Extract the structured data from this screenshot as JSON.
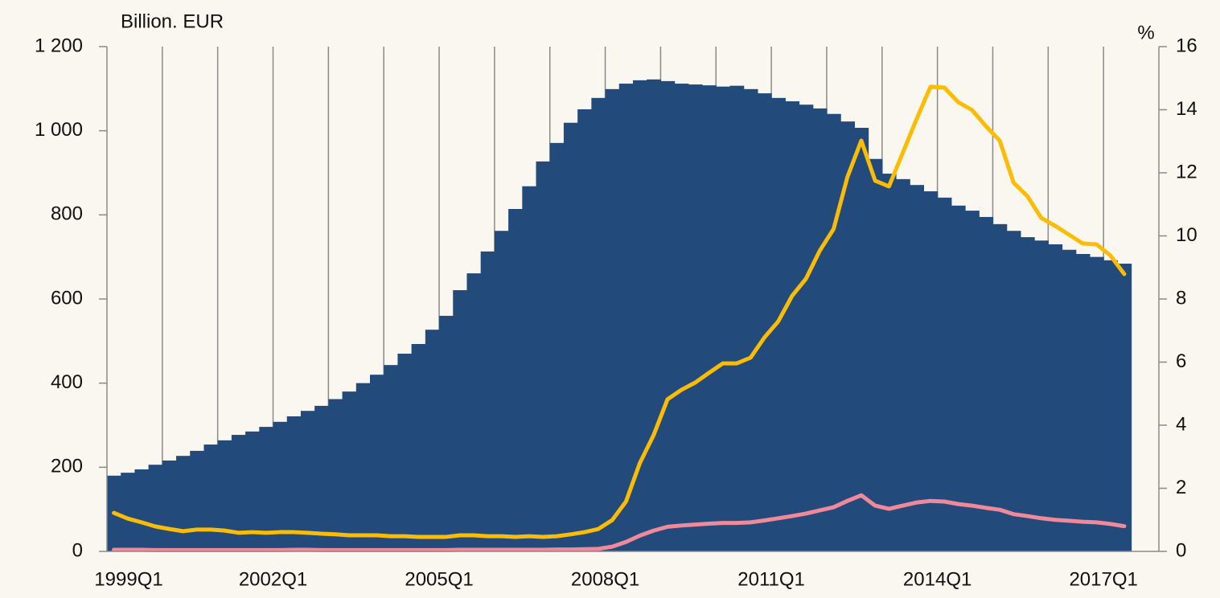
{
  "chart_data": {
    "type": "combo",
    "ylabel": "Billion. EUR",
    "y2label": "%",
    "categories": [
      "1999Q1",
      null,
      null,
      null,
      null,
      null,
      null,
      null,
      null,
      null,
      null,
      null,
      "2002Q1",
      null,
      null,
      null,
      null,
      null,
      null,
      null,
      null,
      null,
      null,
      null,
      "2005Q1",
      null,
      null,
      null,
      null,
      null,
      null,
      null,
      null,
      null,
      null,
      null,
      "2008Q1",
      null,
      null,
      null,
      null,
      null,
      null,
      null,
      null,
      null,
      null,
      null,
      "2011Q1",
      null,
      null,
      null,
      null,
      null,
      null,
      null,
      null,
      null,
      null,
      null,
      "2014Q1",
      null,
      null,
      null,
      null,
      null,
      null,
      null,
      null,
      null,
      null,
      null,
      "2017Q1",
      null,
      null,
      null
    ],
    "ylim": [
      0,
      1200
    ],
    "yticks": [
      0,
      200,
      400,
      600,
      800,
      {
        "value": 1000,
        "label": "1 000"
      },
      {
        "value": 1200,
        "label": "1 200"
      }
    ],
    "y2lim": [
      0,
      16
    ],
    "y2ticks": [
      0,
      2,
      4,
      6,
      8,
      10,
      12,
      14,
      16
    ],
    "grid": "x",
    "series": [
      {
        "type": "bar",
        "color": "#224a7b",
        "values": [
          180,
          187,
          195,
          206,
          216,
          227,
          239,
          254,
          264,
          277,
          285,
          296,
          308,
          321,
          334,
          346,
          362,
          380,
          400,
          420,
          443,
          470,
          493,
          527,
          560,
          621,
          661,
          713,
          762,
          814,
          868,
          927,
          971,
          1019,
          1051,
          1078,
          1099,
          1112,
          1120,
          1122,
          1118,
          1112,
          1110,
          1108,
          1105,
          1107,
          1099,
          1089,
          1078,
          1070,
          1062,
          1053,
          1040,
          1022,
          1007,
          933,
          898,
          885,
          871,
          856,
          841,
          822,
          810,
          795,
          778,
          762,
          747,
          739,
          730,
          717,
          707,
          700,
          692,
          684,
          null,
          null
        ]
      },
      {
        "type": "line",
        "axis": "y2",
        "color": "#fbbc05",
        "values": [
          1.22,
          1.04,
          0.92,
          0.79,
          0.71,
          0.64,
          0.69,
          0.69,
          0.66,
          0.59,
          0.61,
          0.59,
          0.61,
          0.61,
          0.59,
          0.56,
          0.54,
          0.51,
          0.51,
          0.51,
          0.48,
          0.48,
          0.46,
          0.46,
          0.46,
          0.51,
          0.51,
          0.48,
          0.48,
          0.46,
          0.48,
          0.46,
          0.48,
          0.54,
          0.61,
          0.71,
          0.99,
          1.58,
          2.8,
          3.69,
          4.82,
          5.12,
          5.35,
          5.66,
          5.96,
          5.96,
          6.14,
          6.78,
          7.29,
          8.1,
          8.64,
          9.53,
          10.22,
          11.87,
          13.02,
          11.75,
          11.57,
          12.64,
          13.71,
          14.73,
          14.7,
          14.24,
          13.99,
          13.48,
          13.02,
          11.69,
          11.26,
          10.57,
          10.32,
          10.04,
          9.76,
          9.73,
          9.38,
          8.79,
          null,
          null
        ]
      },
      {
        "type": "line",
        "axis": "y2",
        "color": "#f0899a",
        "values": [
          0.05,
          0.05,
          0.05,
          0.04,
          0.04,
          0.04,
          0.04,
          0.04,
          0.04,
          0.04,
          0.04,
          0.04,
          0.04,
          0.05,
          0.05,
          0.04,
          0.04,
          0.04,
          0.04,
          0.04,
          0.04,
          0.04,
          0.04,
          0.04,
          0.04,
          0.05,
          0.05,
          0.05,
          0.05,
          0.05,
          0.05,
          0.05,
          0.06,
          0.06,
          0.07,
          0.08,
          0.15,
          0.3,
          0.5,
          0.66,
          0.78,
          0.82,
          0.85,
          0.88,
          0.9,
          0.9,
          0.92,
          0.98,
          1.05,
          1.12,
          1.2,
          1.3,
          1.4,
          1.6,
          1.78,
          1.45,
          1.35,
          1.45,
          1.55,
          1.6,
          1.58,
          1.5,
          1.45,
          1.38,
          1.32,
          1.18,
          1.12,
          1.05,
          1.0,
          0.97,
          0.94,
          0.92,
          0.87,
          0.8,
          null,
          null
        ]
      }
    ]
  }
}
